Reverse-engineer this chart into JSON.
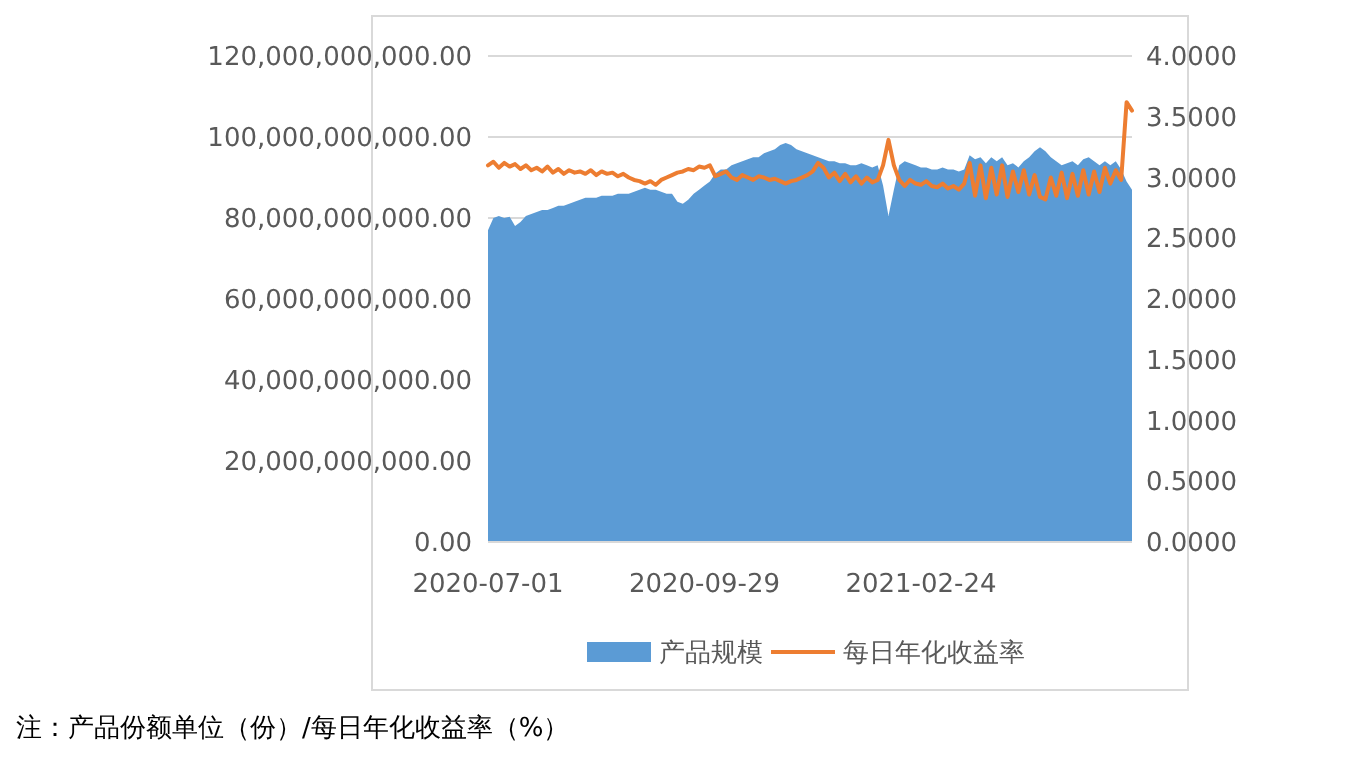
{
  "chart_data": {
    "type": "area",
    "categories": [
      "2020-07-01",
      null,
      null,
      null,
      null,
      null,
      null,
      null,
      null,
      null,
      null,
      null,
      null,
      null,
      null,
      null,
      null,
      null,
      null,
      null,
      null,
      null,
      null,
      null,
      null,
      null,
      null,
      null,
      null,
      null,
      null,
      null,
      null,
      null,
      null,
      null,
      null,
      null,
      null,
      null,
      "2020-09-29",
      null,
      null,
      null,
      null,
      null,
      null,
      null,
      null,
      null,
      null,
      null,
      null,
      null,
      null,
      null,
      null,
      null,
      null,
      null,
      null,
      null,
      null,
      null,
      null,
      null,
      null,
      null,
      null,
      null,
      null,
      null,
      null,
      null,
      null,
      null,
      null,
      null,
      null,
      null,
      "2021-02-24",
      null,
      null,
      null,
      null,
      null,
      null,
      null,
      null,
      null,
      null,
      null,
      null,
      null,
      null,
      null,
      null,
      null,
      null,
      null,
      null,
      null,
      null,
      null,
      null,
      null,
      null,
      null,
      null,
      null,
      null,
      null,
      null,
      null,
      null,
      null,
      null,
      null,
      null,
      null
    ],
    "series": [
      {
        "name": "产品规模",
        "color": "#5b9bd5",
        "values": [
          77000000000.0,
          80000000000.0,
          80500000000.0,
          80000000000.0,
          80300000000.0,
          78000000000.0,
          79000000000.0,
          80500000000.0,
          81000000000.0,
          81500000000.0,
          82000000000.0,
          82000000000.0,
          82500000000.0,
          83000000000.0,
          83000000000.0,
          83500000000.0,
          84000000000.0,
          84500000000.0,
          85000000000.0,
          85000000000.0,
          85000000000.0,
          85500000000.0,
          85500000000.0,
          85500000000.0,
          86000000000.0,
          86000000000.0,
          86000000000.0,
          86500000000.0,
          87000000000.0,
          87500000000.0,
          87000000000.0,
          87000000000.0,
          86500000000.0,
          86000000000.0,
          86000000000.0,
          84000000000.0,
          83500000000.0,
          84500000000.0,
          86000000000.0,
          87000000000.0,
          88000000000.0,
          89000000000.0,
          91000000000.0,
          92000000000.0,
          92000000000.0,
          93000000000.0,
          93500000000.0,
          94000000000.0,
          94500000000.0,
          95000000000.0,
          95000000000.0,
          96000000000.0,
          96500000000.0,
          97000000000.0,
          98000000000.0,
          98500000000.0,
          98000000000.0,
          97000000000.0,
          96500000000.0,
          96000000000.0,
          95500000000.0,
          95000000000.0,
          94500000000.0,
          94000000000.0,
          94000000000.0,
          93500000000.0,
          93500000000.0,
          93000000000.0,
          93000000000.0,
          93500000000.0,
          93000000000.0,
          92500000000.0,
          93000000000.0,
          88000000000.0,
          80500000000.0,
          87000000000.0,
          93000000000.0,
          94000000000.0,
          93500000000.0,
          93000000000.0,
          92500000000.0,
          92500000000.0,
          92000000000.0,
          92000000000.0,
          92500000000.0,
          92000000000.0,
          92000000000.0,
          91500000000.0,
          92000000000.0,
          95500000000.0,
          94500000000.0,
          95000000000.0,
          93500000000.0,
          95000000000.0,
          94000000000.0,
          95000000000.0,
          93000000000.0,
          93500000000.0,
          92500000000.0,
          94000000000.0,
          95000000000.0,
          96500000000.0,
          97500000000.0,
          96500000000.0,
          95000000000.0,
          94000000000.0,
          93000000000.0,
          93500000000.0,
          94000000000.0,
          93000000000.0,
          94500000000.0,
          95000000000.0,
          94000000000.0,
          93000000000.0,
          94000000000.0,
          93000000000.0,
          94000000000.0,
          92000000000.0,
          89000000000.0,
          87000000000.0
        ]
      },
      {
        "name": "每日年化收益率",
        "type": "line",
        "axis": "y2",
        "color": "#ed7d31",
        "values": [
          3.1,
          3.13,
          3.08,
          3.12,
          3.09,
          3.11,
          3.07,
          3.1,
          3.06,
          3.08,
          3.05,
          3.09,
          3.04,
          3.07,
          3.03,
          3.06,
          3.04,
          3.05,
          3.03,
          3.06,
          3.02,
          3.05,
          3.03,
          3.04,
          3.01,
          3.03,
          3.0,
          2.98,
          2.97,
          2.95,
          2.97,
          2.94,
          2.98,
          3.0,
          3.02,
          3.04,
          3.05,
          3.07,
          3.06,
          3.09,
          3.08,
          3.1,
          3.01,
          3.03,
          3.05,
          3.0,
          2.98,
          3.02,
          3.0,
          2.98,
          3.01,
          3.0,
          2.98,
          2.99,
          2.97,
          2.95,
          2.97,
          2.98,
          3.0,
          3.02,
          3.05,
          3.12,
          3.08,
          3.0,
          3.04,
          2.97,
          3.03,
          2.96,
          3.01,
          2.95,
          3.0,
          2.96,
          2.98,
          3.1,
          3.31,
          3.1,
          2.98,
          2.93,
          2.98,
          2.95,
          2.94,
          2.97,
          2.93,
          2.92,
          2.95,
          2.91,
          2.93,
          2.9,
          2.95,
          3.12,
          2.85,
          3.1,
          2.83,
          3.08,
          2.86,
          3.1,
          2.84,
          3.05,
          2.88,
          3.06,
          2.86,
          3.02,
          2.84,
          2.82,
          3.0,
          2.85,
          3.04,
          2.83,
          3.03,
          2.85,
          3.06,
          2.86,
          3.05,
          2.88,
          3.08,
          2.95,
          3.06,
          2.98,
          3.62,
          3.55
        ]
      }
    ],
    "ylim": [
      0,
      120000000000
    ],
    "yticks": [
      {
        "value": 0,
        "label": "0.00"
      },
      {
        "value": 20000000000,
        "label": "20,000,000,000.00"
      },
      {
        "value": 40000000000,
        "label": "40,000,000,000.00"
      },
      {
        "value": 60000000000,
        "label": "60,000,000,000.00"
      },
      {
        "value": 80000000000,
        "label": "80,000,000,000.00"
      },
      {
        "value": 100000000000,
        "label": "100,000,000,000.00"
      },
      {
        "value": 120000000000,
        "label": "120,000,000,000.00"
      }
    ],
    "y2lim": [
      0,
      4
    ],
    "y2ticks": [
      {
        "value": 0,
        "label": "0.0000"
      },
      {
        "value": 0.5,
        "label": "0.5000"
      },
      {
        "value": 1,
        "label": "1.0000"
      },
      {
        "value": 1.5,
        "label": "1.5000"
      },
      {
        "value": 2,
        "label": "2.0000"
      },
      {
        "value": 2.5,
        "label": "2.5000"
      },
      {
        "value": 3,
        "label": "3.0000"
      },
      {
        "value": 3.5,
        "label": "3.5000"
      },
      {
        "value": 4,
        "label": "4.0000"
      }
    ],
    "grid": "y",
    "legend": "bottom",
    "annotations": [
      "注：产品份额单位（份）/每日年化收益率（%）"
    ]
  }
}
